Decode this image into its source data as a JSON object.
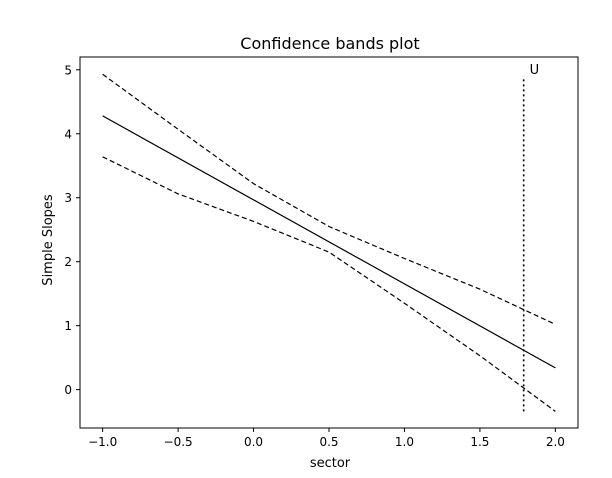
{
  "chart_data": {
    "type": "line",
    "title": "Confidence bands plot",
    "xlabel": "sector",
    "ylabel": "Simple Slopes",
    "xlim": [
      -1.15,
      2.15
    ],
    "ylim": [
      -0.6,
      5.2
    ],
    "xticks": [
      -1.0,
      -0.5,
      0.0,
      0.5,
      1.0,
      1.5,
      2.0
    ],
    "xtick_labels": [
      "−1.0",
      "−0.5",
      "0.0",
      "0.5",
      "1.0",
      "1.5",
      "2.0"
    ],
    "yticks": [
      0,
      1,
      2,
      3,
      4,
      5
    ],
    "ytick_labels": [
      "0",
      "1",
      "2",
      "3",
      "4",
      "5"
    ],
    "grid": false,
    "legend": "none",
    "series": [
      {
        "style": "solid",
        "color": "#000000",
        "x": [
          -1.0,
          2.0
        ],
        "y": [
          4.28,
          0.34
        ]
      },
      {
        "style": "dashed",
        "color": "#000000",
        "x": [
          -1.0,
          -0.5,
          0.0,
          0.5,
          1.0,
          1.5,
          2.0
        ],
        "y": [
          4.93,
          4.07,
          3.22,
          2.55,
          2.05,
          1.57,
          1.02
        ]
      },
      {
        "style": "dashed",
        "color": "#000000",
        "x": [
          -1.0,
          -0.5,
          0.0,
          0.5,
          1.0,
          1.5,
          2.0
        ],
        "y": [
          3.64,
          3.06,
          2.63,
          2.15,
          1.35,
          0.53,
          -0.34
        ]
      }
    ],
    "annotations": [
      {
        "type": "vline",
        "style": "dotted",
        "x": 1.79,
        "y_from": -0.34,
        "y_to": 4.9,
        "label": "U"
      }
    ]
  }
}
